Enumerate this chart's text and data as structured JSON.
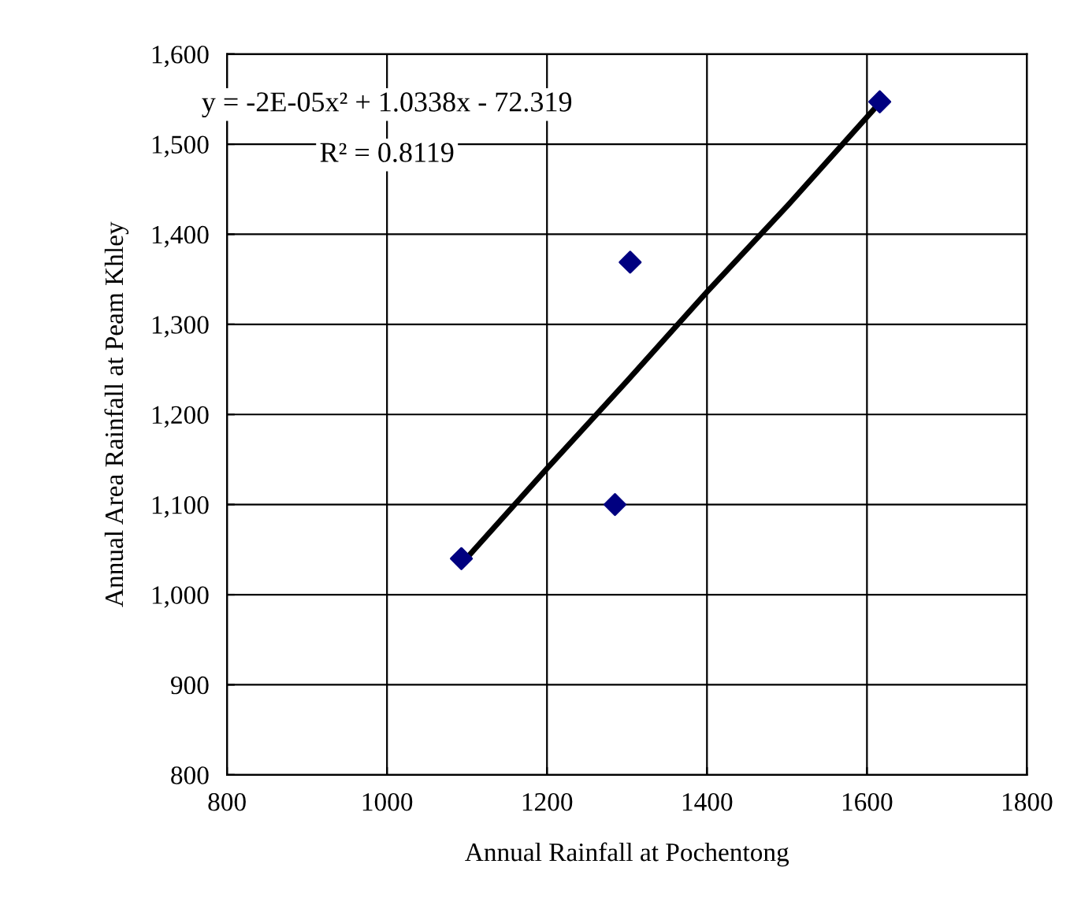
{
  "chart_data": {
    "type": "scatter",
    "xlabel": "Annual Rainfall at Pochentong",
    "ylabel": "Annual Area Rainfall at Peam Khley",
    "series": [
      {
        "color": "#000080",
        "marker": "diamond",
        "x": [
          1093,
          1285,
          1304,
          1616
        ],
        "values": [
          1040,
          1100,
          1369,
          1547
        ]
      },
      {
        "type": "line",
        "color": "#000000",
        "marker": "none",
        "line_style": "solid",
        "x": [
          1093,
          1200,
          1300,
          1400,
          1500,
          1616
        ],
        "values": [
          1034,
          1140,
          1237,
          1336,
          1431,
          1546
        ]
      }
    ],
    "annotations": [
      "y = -2E-05x² + 1.0338x - 72.319",
      "R² = 0.8119"
    ],
    "xlim": [
      800,
      1800
    ],
    "xticks": [
      800,
      1000,
      1200,
      1400,
      1600,
      1800
    ],
    "ylim": [
      800,
      1600
    ],
    "yticks": [
      {
        "value": 800,
        "label": "800"
      },
      {
        "value": 900,
        "label": "900"
      },
      {
        "value": 1000,
        "label": "1,000"
      },
      {
        "value": 1100,
        "label": "1,100"
      },
      {
        "value": 1200,
        "label": "1,200"
      },
      {
        "value": 1300,
        "label": "1,300"
      },
      {
        "value": 1400,
        "label": "1,400"
      },
      {
        "value": 1500,
        "label": "1,500"
      },
      {
        "value": 1600,
        "label": "1,600"
      }
    ],
    "grid": true,
    "legend": false
  }
}
